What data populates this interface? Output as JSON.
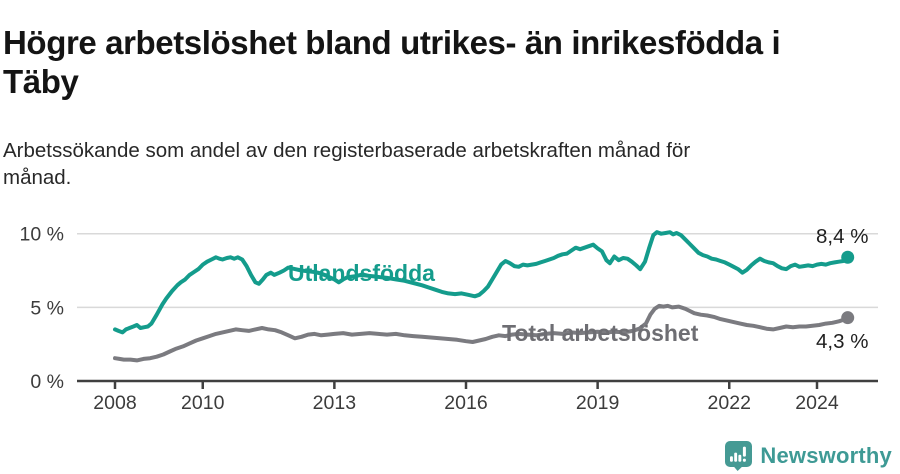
{
  "header": {
    "title": "Högre arbetslöshet bland utrikes- än inrikesfödda i\nTäby",
    "subtitle": "Arbetssökande som andel av den registerbaserade arbetskraften månad för\nmånad."
  },
  "footer": {
    "brand": "Newsworthy",
    "brand_color": "#3E9A95",
    "logo_icon": "speech-bubble-bar-chart-icon"
  },
  "chart_data": {
    "type": "line",
    "title": "Arbetssökande som andel av den registerbaserade arbetskraften månad för månad",
    "grid": "horizontal",
    "legend_position": "inline-labels",
    "x_axis": {
      "ticks": [
        2008,
        2010,
        2013,
        2016,
        2019,
        2022,
        2024
      ],
      "range": [
        2007.15,
        2025.4
      ]
    },
    "y_axis": {
      "ticks": [
        0,
        5,
        10
      ],
      "tick_labels": [
        "0 %",
        "5 %",
        "10 %"
      ],
      "range": [
        0,
        10.5
      ],
      "unit": "%"
    },
    "colors": {
      "grid": "#d9d9d9",
      "axis": "#404040",
      "tick_text": "#3c3c3c",
      "end_label_text": "#1f1f1f"
    },
    "series": [
      {
        "name": "Utlandsfödda",
        "color": "#149C8C",
        "label_color": "#149C8C",
        "end_label": "8,4 %",
        "end_value": 8.4,
        "points": [
          [
            2008.0,
            3.5
          ],
          [
            2008.08,
            3.4
          ],
          [
            2008.17,
            3.3
          ],
          [
            2008.25,
            3.5
          ],
          [
            2008.33,
            3.6
          ],
          [
            2008.42,
            3.7
          ],
          [
            2008.5,
            3.8
          ],
          [
            2008.58,
            3.6
          ],
          [
            2008.67,
            3.65
          ],
          [
            2008.75,
            3.7
          ],
          [
            2008.83,
            3.9
          ],
          [
            2008.95,
            4.5
          ],
          [
            2009.08,
            5.2
          ],
          [
            2009.17,
            5.6
          ],
          [
            2009.3,
            6.1
          ],
          [
            2009.42,
            6.5
          ],
          [
            2009.5,
            6.7
          ],
          [
            2009.6,
            6.9
          ],
          [
            2009.7,
            7.2
          ],
          [
            2009.8,
            7.4
          ],
          [
            2009.9,
            7.6
          ],
          [
            2010.0,
            7.9
          ],
          [
            2010.1,
            8.1
          ],
          [
            2010.2,
            8.25
          ],
          [
            2010.3,
            8.4
          ],
          [
            2010.38,
            8.3
          ],
          [
            2010.45,
            8.25
          ],
          [
            2010.55,
            8.35
          ],
          [
            2010.63,
            8.4
          ],
          [
            2010.72,
            8.3
          ],
          [
            2010.8,
            8.4
          ],
          [
            2010.9,
            8.25
          ],
          [
            2011.0,
            7.8
          ],
          [
            2011.1,
            7.2
          ],
          [
            2011.2,
            6.7
          ],
          [
            2011.28,
            6.6
          ],
          [
            2011.37,
            6.9
          ],
          [
            2011.45,
            7.2
          ],
          [
            2011.55,
            7.35
          ],
          [
            2011.63,
            7.2
          ],
          [
            2011.75,
            7.35
          ],
          [
            2011.85,
            7.5
          ],
          [
            2011.95,
            7.7
          ],
          [
            2012.1,
            7.6
          ],
          [
            2012.25,
            7.5
          ],
          [
            2012.4,
            7.45
          ],
          [
            2012.55,
            7.4
          ],
          [
            2012.7,
            7.3
          ],
          [
            2012.85,
            7.1
          ],
          [
            2013.0,
            6.9
          ],
          [
            2013.1,
            6.7
          ],
          [
            2013.2,
            6.9
          ],
          [
            2013.3,
            7.05
          ],
          [
            2013.45,
            7.1
          ],
          [
            2013.6,
            7.2
          ],
          [
            2013.75,
            7.15
          ],
          [
            2013.9,
            7.1
          ],
          [
            2014.05,
            7.05
          ],
          [
            2014.2,
            7.0
          ],
          [
            2014.4,
            6.9
          ],
          [
            2014.6,
            6.8
          ],
          [
            2014.8,
            6.65
          ],
          [
            2015.0,
            6.5
          ],
          [
            2015.15,
            6.35
          ],
          [
            2015.3,
            6.2
          ],
          [
            2015.45,
            6.05
          ],
          [
            2015.6,
            5.95
          ],
          [
            2015.75,
            5.9
          ],
          [
            2015.9,
            5.95
          ],
          [
            2016.05,
            5.85
          ],
          [
            2016.2,
            5.75
          ],
          [
            2016.3,
            5.85
          ],
          [
            2016.4,
            6.1
          ],
          [
            2016.5,
            6.4
          ],
          [
            2016.6,
            6.9
          ],
          [
            2016.7,
            7.4
          ],
          [
            2016.8,
            7.9
          ],
          [
            2016.9,
            8.15
          ],
          [
            2017.0,
            8.0
          ],
          [
            2017.1,
            7.8
          ],
          [
            2017.2,
            7.75
          ],
          [
            2017.3,
            7.9
          ],
          [
            2017.4,
            7.85
          ],
          [
            2017.5,
            7.9
          ],
          [
            2017.6,
            7.95
          ],
          [
            2017.7,
            8.05
          ],
          [
            2017.8,
            8.15
          ],
          [
            2017.9,
            8.25
          ],
          [
            2018.0,
            8.35
          ],
          [
            2018.1,
            8.5
          ],
          [
            2018.2,
            8.6
          ],
          [
            2018.3,
            8.65
          ],
          [
            2018.4,
            8.85
          ],
          [
            2018.5,
            9.05
          ],
          [
            2018.6,
            8.95
          ],
          [
            2018.7,
            9.05
          ],
          [
            2018.8,
            9.15
          ],
          [
            2018.9,
            9.25
          ],
          [
            2019.0,
            9.0
          ],
          [
            2019.1,
            8.8
          ],
          [
            2019.2,
            8.2
          ],
          [
            2019.28,
            8.0
          ],
          [
            2019.38,
            8.45
          ],
          [
            2019.48,
            8.2
          ],
          [
            2019.58,
            8.35
          ],
          [
            2019.68,
            8.3
          ],
          [
            2019.78,
            8.1
          ],
          [
            2019.88,
            7.85
          ],
          [
            2019.97,
            7.6
          ],
          [
            2020.08,
            8.1
          ],
          [
            2020.17,
            9.0
          ],
          [
            2020.27,
            9.9
          ],
          [
            2020.35,
            10.1
          ],
          [
            2020.45,
            10.0
          ],
          [
            2020.55,
            10.05
          ],
          [
            2020.65,
            10.1
          ],
          [
            2020.72,
            9.95
          ],
          [
            2020.8,
            10.05
          ],
          [
            2020.9,
            9.9
          ],
          [
            2021.0,
            9.6
          ],
          [
            2021.1,
            9.3
          ],
          [
            2021.2,
            9.0
          ],
          [
            2021.3,
            8.7
          ],
          [
            2021.4,
            8.55
          ],
          [
            2021.5,
            8.45
          ],
          [
            2021.6,
            8.3
          ],
          [
            2021.7,
            8.25
          ],
          [
            2021.8,
            8.15
          ],
          [
            2021.9,
            8.05
          ],
          [
            2022.0,
            7.9
          ],
          [
            2022.1,
            7.75
          ],
          [
            2022.2,
            7.6
          ],
          [
            2022.3,
            7.35
          ],
          [
            2022.4,
            7.55
          ],
          [
            2022.5,
            7.85
          ],
          [
            2022.6,
            8.1
          ],
          [
            2022.7,
            8.3
          ],
          [
            2022.8,
            8.15
          ],
          [
            2022.9,
            8.05
          ],
          [
            2023.0,
            8.0
          ],
          [
            2023.1,
            7.8
          ],
          [
            2023.2,
            7.65
          ],
          [
            2023.3,
            7.6
          ],
          [
            2023.4,
            7.8
          ],
          [
            2023.5,
            7.9
          ],
          [
            2023.6,
            7.75
          ],
          [
            2023.7,
            7.8
          ],
          [
            2023.8,
            7.85
          ],
          [
            2023.9,
            7.8
          ],
          [
            2024.0,
            7.9
          ],
          [
            2024.1,
            7.95
          ],
          [
            2024.2,
            7.9
          ],
          [
            2024.3,
            8.0
          ],
          [
            2024.4,
            8.05
          ],
          [
            2024.5,
            8.1
          ],
          [
            2024.6,
            8.15
          ],
          [
            2024.7,
            8.4
          ]
        ]
      },
      {
        "name": "Total arbetslöshet",
        "color": "#7B7B80",
        "label_color": "#6E6E73",
        "end_label": "4,3 %",
        "end_value": 4.3,
        "points": [
          [
            2008.0,
            1.55
          ],
          [
            2008.1,
            1.5
          ],
          [
            2008.2,
            1.45
          ],
          [
            2008.35,
            1.45
          ],
          [
            2008.5,
            1.4
          ],
          [
            2008.65,
            1.5
          ],
          [
            2008.8,
            1.55
          ],
          [
            2008.95,
            1.65
          ],
          [
            2009.1,
            1.8
          ],
          [
            2009.25,
            2.0
          ],
          [
            2009.4,
            2.2
          ],
          [
            2009.55,
            2.35
          ],
          [
            2009.7,
            2.55
          ],
          [
            2009.85,
            2.75
          ],
          [
            2010.0,
            2.9
          ],
          [
            2010.15,
            3.05
          ],
          [
            2010.3,
            3.2
          ],
          [
            2010.45,
            3.3
          ],
          [
            2010.6,
            3.4
          ],
          [
            2010.75,
            3.5
          ],
          [
            2010.9,
            3.45
          ],
          [
            2011.05,
            3.4
          ],
          [
            2011.2,
            3.5
          ],
          [
            2011.35,
            3.6
          ],
          [
            2011.5,
            3.5
          ],
          [
            2011.65,
            3.45
          ],
          [
            2011.8,
            3.3
          ],
          [
            2011.95,
            3.1
          ],
          [
            2012.1,
            2.9
          ],
          [
            2012.25,
            3.0
          ],
          [
            2012.4,
            3.15
          ],
          [
            2012.55,
            3.2
          ],
          [
            2012.7,
            3.1
          ],
          [
            2012.85,
            3.15
          ],
          [
            2013.0,
            3.2
          ],
          [
            2013.2,
            3.25
          ],
          [
            2013.4,
            3.15
          ],
          [
            2013.6,
            3.2
          ],
          [
            2013.8,
            3.25
          ],
          [
            2014.0,
            3.2
          ],
          [
            2014.2,
            3.15
          ],
          [
            2014.4,
            3.2
          ],
          [
            2014.6,
            3.1
          ],
          [
            2014.8,
            3.05
          ],
          [
            2015.0,
            3.0
          ],
          [
            2015.2,
            2.95
          ],
          [
            2015.4,
            2.9
          ],
          [
            2015.6,
            2.85
          ],
          [
            2015.8,
            2.8
          ],
          [
            2016.0,
            2.7
          ],
          [
            2016.15,
            2.65
          ],
          [
            2016.3,
            2.75
          ],
          [
            2016.45,
            2.85
          ],
          [
            2016.6,
            3.0
          ],
          [
            2016.75,
            3.1
          ],
          [
            2016.9,
            3.05
          ],
          [
            2017.05,
            3.15
          ],
          [
            2017.2,
            3.2
          ],
          [
            2017.4,
            3.15
          ],
          [
            2017.6,
            3.1
          ],
          [
            2017.8,
            3.2
          ],
          [
            2018.0,
            3.25
          ],
          [
            2018.2,
            3.2
          ],
          [
            2018.4,
            3.3
          ],
          [
            2018.6,
            3.25
          ],
          [
            2018.8,
            3.3
          ],
          [
            2019.0,
            3.35
          ],
          [
            2019.2,
            3.3
          ],
          [
            2019.4,
            3.35
          ],
          [
            2019.6,
            3.3
          ],
          [
            2019.8,
            3.4
          ],
          [
            2019.95,
            3.55
          ],
          [
            2020.1,
            3.9
          ],
          [
            2020.2,
            4.5
          ],
          [
            2020.3,
            4.9
          ],
          [
            2020.4,
            5.1
          ],
          [
            2020.5,
            5.05
          ],
          [
            2020.6,
            5.1
          ],
          [
            2020.7,
            5.0
          ],
          [
            2020.85,
            5.05
          ],
          [
            2021.0,
            4.9
          ],
          [
            2021.1,
            4.75
          ],
          [
            2021.2,
            4.6
          ],
          [
            2021.35,
            4.5
          ],
          [
            2021.5,
            4.45
          ],
          [
            2021.65,
            4.35
          ],
          [
            2021.8,
            4.2
          ],
          [
            2021.95,
            4.1
          ],
          [
            2022.1,
            4.0
          ],
          [
            2022.25,
            3.9
          ],
          [
            2022.4,
            3.8
          ],
          [
            2022.55,
            3.75
          ],
          [
            2022.7,
            3.65
          ],
          [
            2022.85,
            3.55
          ],
          [
            2023.0,
            3.5
          ],
          [
            2023.15,
            3.6
          ],
          [
            2023.3,
            3.7
          ],
          [
            2023.45,
            3.65
          ],
          [
            2023.6,
            3.7
          ],
          [
            2023.75,
            3.7
          ],
          [
            2023.9,
            3.75
          ],
          [
            2024.05,
            3.8
          ],
          [
            2024.2,
            3.9
          ],
          [
            2024.35,
            3.95
          ],
          [
            2024.5,
            4.05
          ],
          [
            2024.6,
            4.15
          ],
          [
            2024.7,
            4.3
          ]
        ]
      }
    ]
  }
}
